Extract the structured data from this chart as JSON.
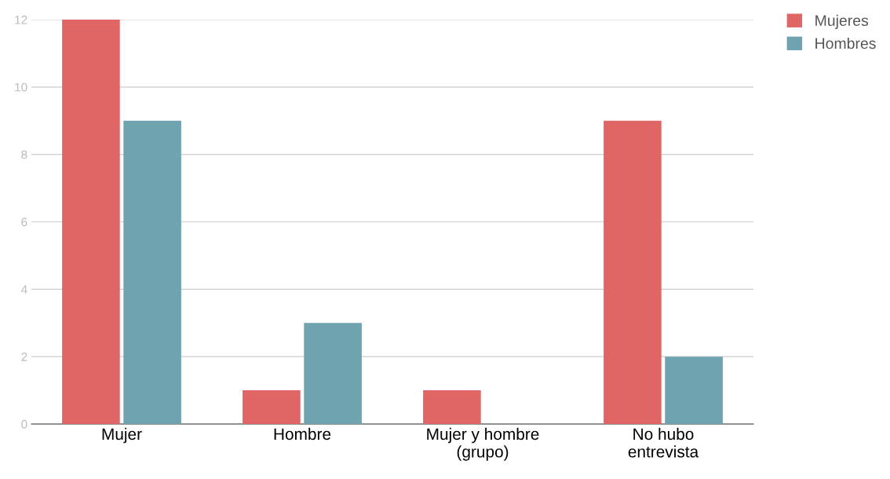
{
  "chart_data": {
    "type": "bar",
    "categories": [
      "Mujer",
      "Hombre",
      "Mujer y hombre\n(grupo)",
      "No hubo\nentrevista"
    ],
    "series": [
      {
        "name": "Mujeres",
        "color": "#e06666",
        "values": [
          12,
          1,
          1,
          9
        ]
      },
      {
        "name": "Hombres",
        "color": "#6fa3b0",
        "values": [
          9,
          3,
          0,
          2
        ]
      }
    ],
    "ylim": [
      0,
      12
    ],
    "yticks": [
      0,
      2,
      4,
      6,
      8,
      10,
      12
    ],
    "grid": "y",
    "legend": "top right"
  }
}
